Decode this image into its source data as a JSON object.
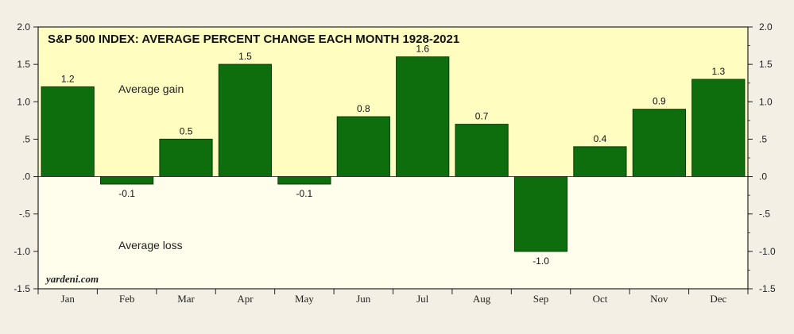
{
  "chart_data": {
    "type": "bar",
    "title": "S&P 500 INDEX: AVERAGE PERCENT CHANGE EACH MONTH 1928-2021",
    "categories": [
      "Jan",
      "Feb",
      "Mar",
      "Apr",
      "May",
      "Jun",
      "Jul",
      "Aug",
      "Sep",
      "Oct",
      "Nov",
      "Dec"
    ],
    "values": [
      1.2,
      -0.1,
      0.5,
      1.5,
      -0.1,
      0.8,
      1.6,
      0.7,
      -1.0,
      0.4,
      0.9,
      1.3
    ],
    "data_labels": [
      "1.2",
      "-0.1",
      "0.5",
      "1.5",
      "-0.1",
      "0.8",
      "1.6",
      "0.7",
      "-1.0",
      "0.4",
      "0.9",
      "1.3"
    ],
    "ylim": [
      -1.5,
      2.0
    ],
    "y_ticks": [
      2.0,
      1.5,
      1.0,
      0.5,
      0.0,
      -0.5,
      -1.0,
      -1.5
    ],
    "y_tick_labels": [
      "2.0",
      "1.5",
      "1.0",
      ".5",
      ".0",
      "-.5",
      "-1.0",
      "-1.5"
    ],
    "annotations": {
      "gain": "Average gain",
      "loss": "Average loss"
    },
    "watermark": "yardeni.com",
    "xlabel": "",
    "ylabel": "",
    "grid": false,
    "colors": {
      "bar_fill": "#0e6e0e",
      "bar_stroke": "#033d03",
      "plot_positive_bg": "#fffec0",
      "plot_negative_bg": "#fffdeb",
      "page_bg": "#f4efe4"
    }
  }
}
